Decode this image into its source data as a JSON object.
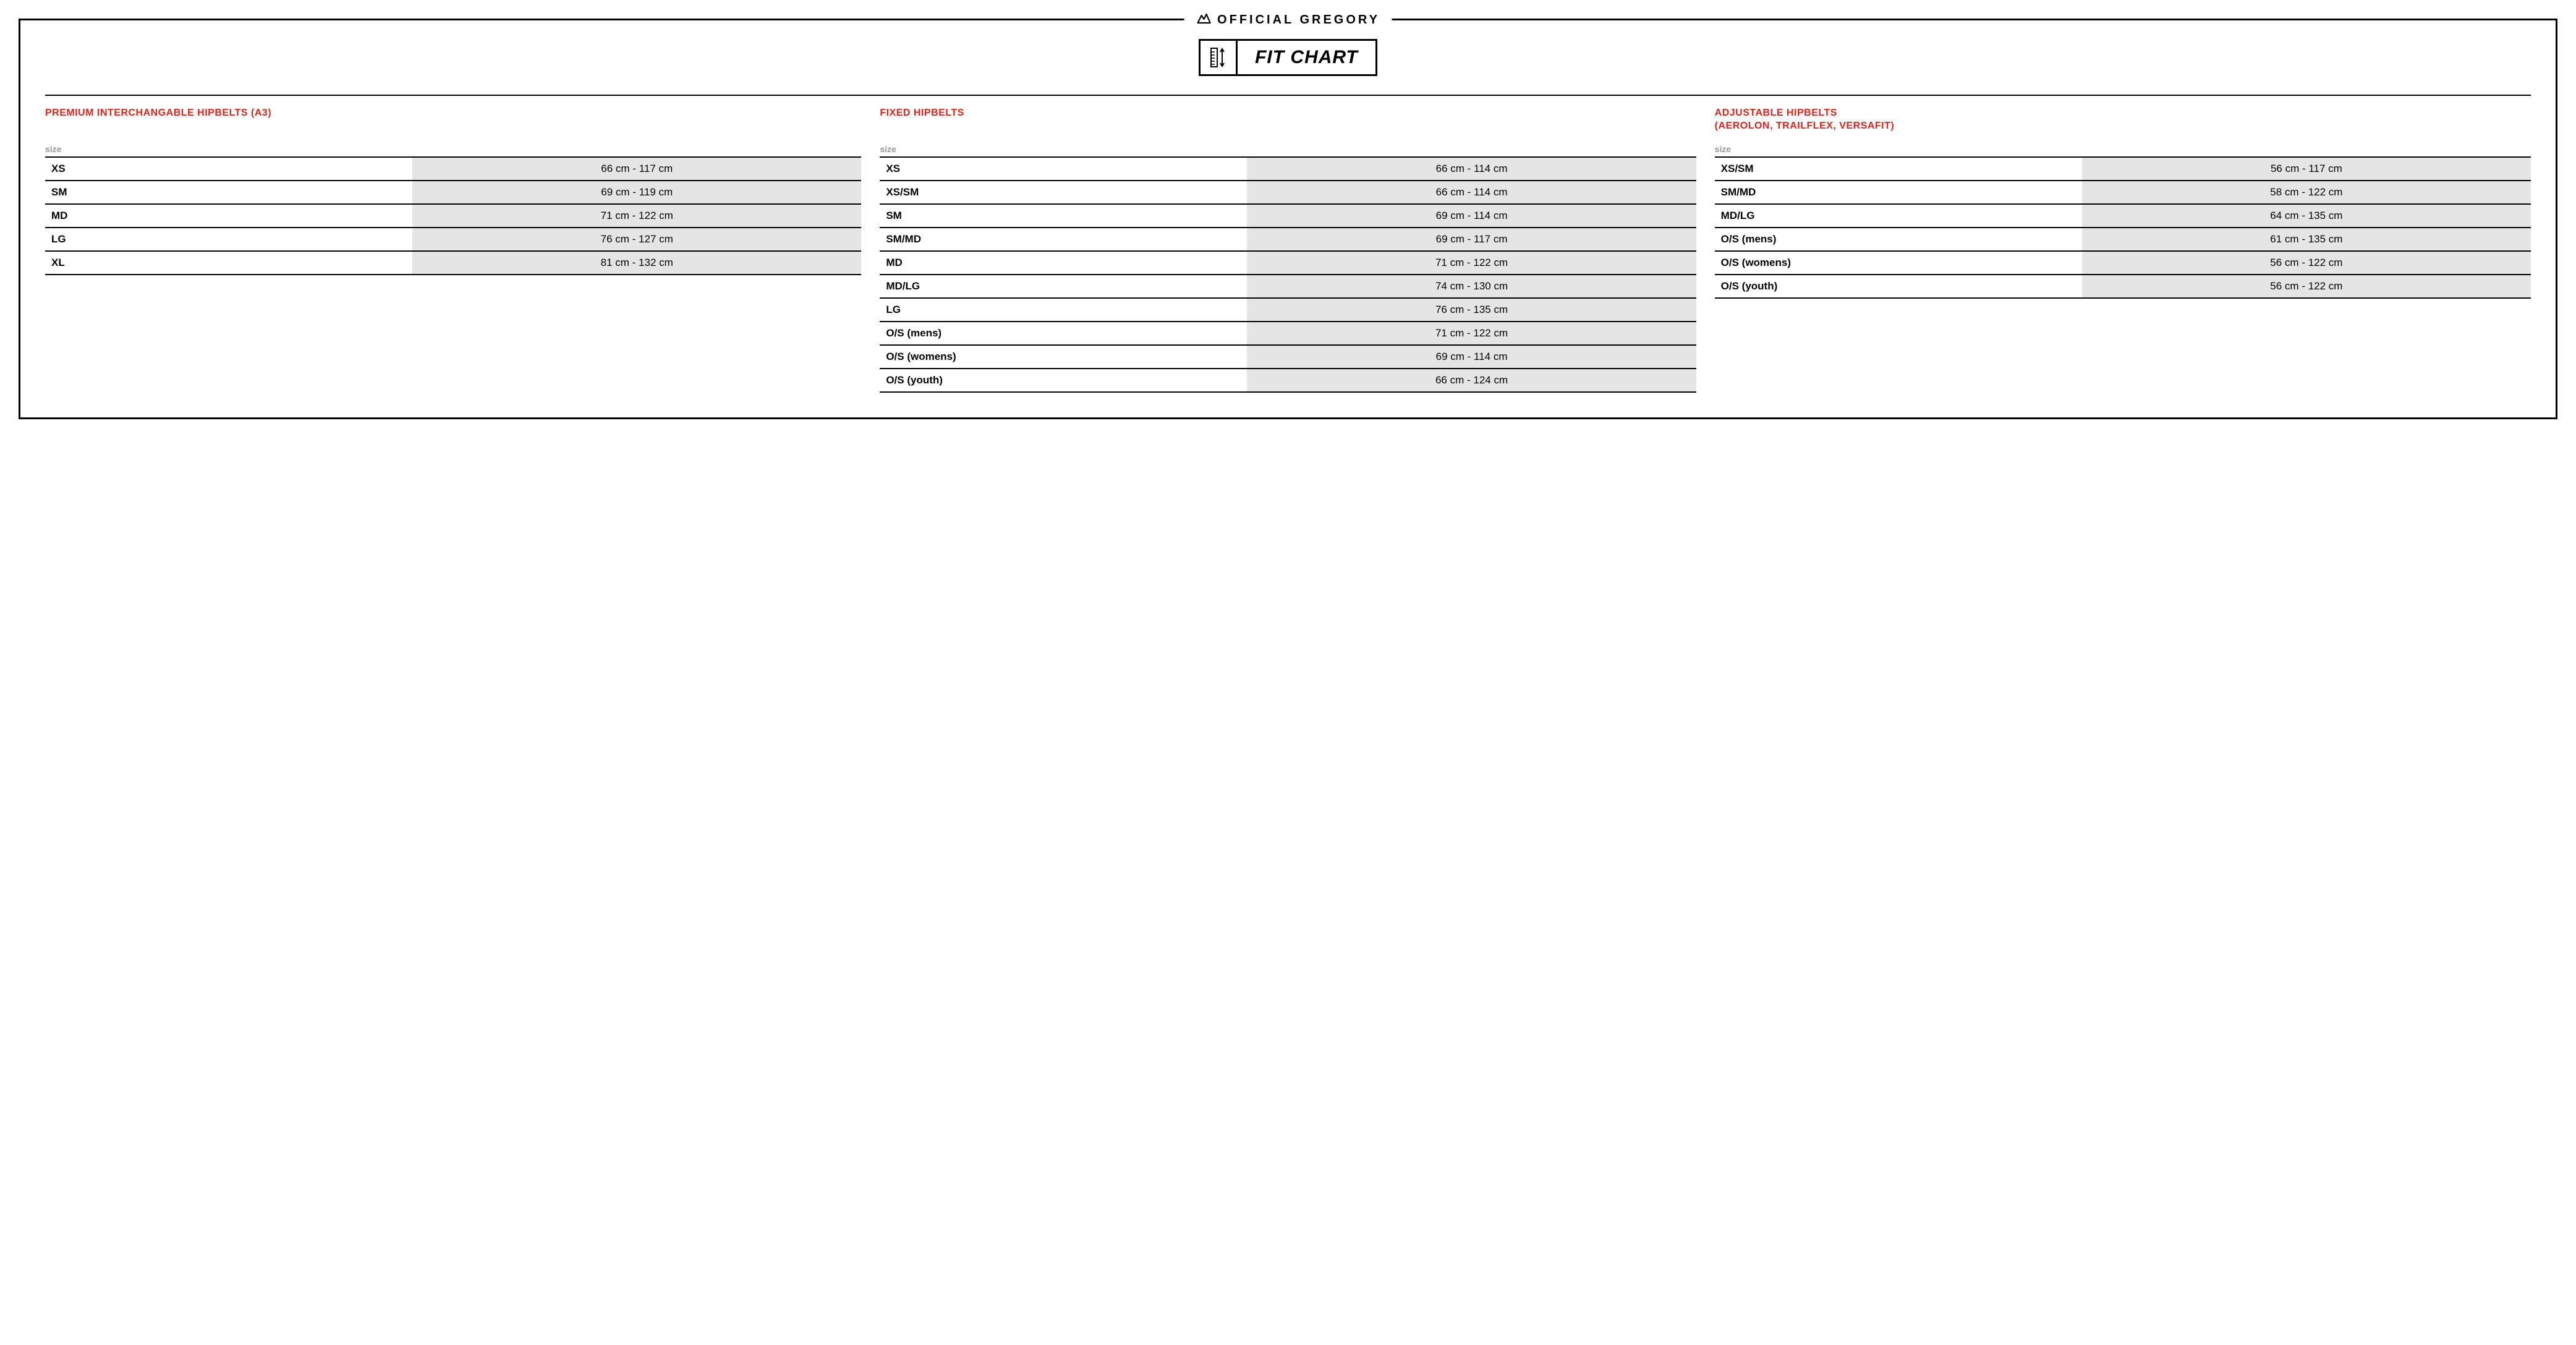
{
  "header": {
    "brand": "OFFICIAL GREGORY",
    "badge": "FIT CHART"
  },
  "columns": [
    {
      "title": "PREMIUM INTERCHANGABLE HIPBELTS (A3)",
      "size_label": "size",
      "rows": [
        {
          "size": "XS",
          "range": "66 cm - 117 cm"
        },
        {
          "size": "SM",
          "range": "69 cm - 119 cm"
        },
        {
          "size": "MD",
          "range": "71 cm - 122 cm"
        },
        {
          "size": "LG",
          "range": "76 cm - 127 cm"
        },
        {
          "size": "XL",
          "range": "81 cm - 132 cm"
        }
      ]
    },
    {
      "title": "FIXED HIPBELTS",
      "size_label": "size",
      "rows": [
        {
          "size": "XS",
          "range": "66 cm - 114 cm"
        },
        {
          "size": "XS/SM",
          "range": "66 cm - 114 cm"
        },
        {
          "size": "SM",
          "range": "69 cm - 114 cm"
        },
        {
          "size": "SM/MD",
          "range": "69 cm - 117 cm"
        },
        {
          "size": "MD",
          "range": "71 cm - 122 cm"
        },
        {
          "size": "MD/LG",
          "range": "74 cm - 130 cm"
        },
        {
          "size": "LG",
          "range": "76 cm - 135 cm"
        },
        {
          "size": "O/S (mens)",
          "range": "71 cm - 122 cm"
        },
        {
          "size": "O/S (womens)",
          "range": "69 cm - 114 cm"
        },
        {
          "size": "O/S (youth)",
          "range": "66 cm - 124 cm"
        }
      ]
    },
    {
      "title": "ADJUSTABLE HIPBELTS\n(AEROLON, TRAILFLEX, VERSAFIT)",
      "size_label": "size",
      "rows": [
        {
          "size": "XS/SM",
          "range": "56 cm - 117 cm"
        },
        {
          "size": "SM/MD",
          "range": "58 cm - 122 cm"
        },
        {
          "size": "MD/LG",
          "range": "64 cm - 135 cm"
        },
        {
          "size": "O/S (mens)",
          "range": "61 cm - 135 cm"
        },
        {
          "size": "O/S (womens)",
          "range": "56 cm - 122 cm"
        },
        {
          "size": "O/S (youth)",
          "range": "56 cm - 122 cm"
        }
      ]
    }
  ],
  "colors": {
    "accent": "#e2231a",
    "border": "#000000",
    "shade": "#e5e5e5",
    "muted": "#999999",
    "background": "#ffffff"
  }
}
